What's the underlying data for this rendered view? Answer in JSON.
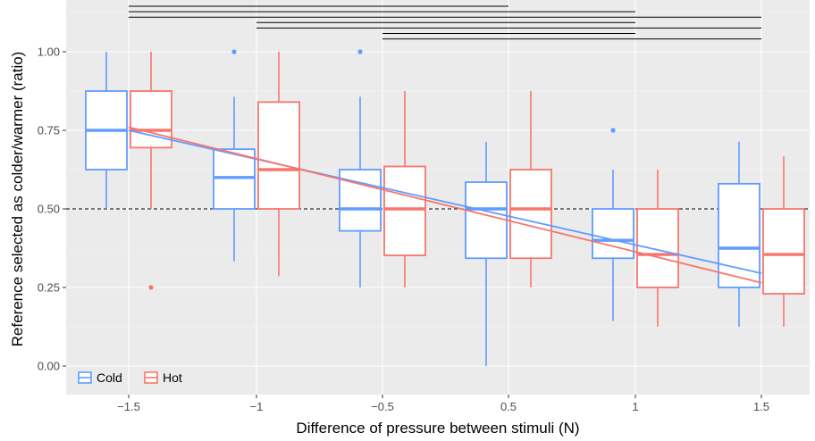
{
  "chart_data": {
    "type": "box",
    "xlabel": "Difference of pressure between stimuli (N)",
    "ylabel": "Reference selected as colder/warmer (ratio)",
    "categories": [
      "−1.5",
      "−1",
      "−0.5",
      "0.5",
      "1",
      "1.5"
    ],
    "x": [
      -1.5,
      -1,
      -0.5,
      0.5,
      1,
      1.5
    ],
    "ylim": [
      -0.05,
      1.14
    ],
    "yticks": [
      0.0,
      0.25,
      0.5,
      0.75,
      1.0
    ],
    "ytick_labels": [
      "0.00",
      "0.25",
      "0.50",
      "0.75",
      "1.00"
    ],
    "reference_line": 0.5,
    "legend": {
      "position": "bottom-left"
    },
    "series": [
      {
        "name": "Cold",
        "color": "#619CFF",
        "boxes": [
          {
            "x": -1.5,
            "min": 0.5,
            "q1": 0.625,
            "median": 0.75,
            "q3": 0.875,
            "max": 1.0,
            "outliers": []
          },
          {
            "x": -1,
            "min": 0.333,
            "q1": 0.5,
            "median": 0.6,
            "q3": 0.69,
            "max": 0.857,
            "outliers": [
              1.0
            ]
          },
          {
            "x": -0.5,
            "min": 0.25,
            "q1": 0.43,
            "median": 0.5,
            "q3": 0.625,
            "max": 0.857,
            "outliers": [
              1.0
            ]
          },
          {
            "x": 0.5,
            "min": 0.0,
            "q1": 0.343,
            "median": 0.5,
            "q3": 0.585,
            "max": 0.714,
            "outliers": []
          },
          {
            "x": 1,
            "min": 0.143,
            "q1": 0.343,
            "median": 0.4,
            "q3": 0.5,
            "max": 0.625,
            "outliers": [
              0.75
            ]
          },
          {
            "x": 1.5,
            "min": 0.125,
            "q1": 0.25,
            "median": 0.375,
            "q3": 0.58,
            "max": 0.714,
            "outliers": []
          }
        ],
        "trend": {
          "from": [
            -1.5,
            0.75
          ],
          "to": [
            1.5,
            0.295
          ]
        }
      },
      {
        "name": "Hot",
        "color": "#F8766D",
        "boxes": [
          {
            "x": -1.5,
            "min": 0.5,
            "q1": 0.695,
            "median": 0.75,
            "q3": 0.875,
            "max": 1.0,
            "outliers": [
              0.25
            ]
          },
          {
            "x": -1,
            "min": 0.286,
            "q1": 0.5,
            "median": 0.625,
            "q3": 0.84,
            "max": 1.0,
            "outliers": []
          },
          {
            "x": -0.5,
            "min": 0.25,
            "q1": 0.352,
            "median": 0.5,
            "q3": 0.635,
            "max": 0.875,
            "outliers": []
          },
          {
            "x": 0.5,
            "min": 0.25,
            "q1": 0.343,
            "median": 0.5,
            "q3": 0.625,
            "max": 0.875,
            "outliers": []
          },
          {
            "x": 1,
            "min": 0.125,
            "q1": 0.25,
            "median": 0.355,
            "q3": 0.5,
            "max": 0.625,
            "outliers": []
          },
          {
            "x": 1.5,
            "min": 0.125,
            "q1": 0.23,
            "median": 0.355,
            "q3": 0.5,
            "max": 0.667,
            "outliers": []
          }
        ],
        "trend": {
          "from": [
            -1.5,
            0.76
          ],
          "to": [
            1.5,
            0.265
          ]
        }
      }
    ],
    "significance_brackets": [
      {
        "from": -1.5,
        "to": 0.5
      },
      {
        "from": -1.5,
        "to": 1
      },
      {
        "from": -1.5,
        "to": 1.5
      },
      {
        "from": -1,
        "to": 1
      },
      {
        "from": -1,
        "to": 1.5
      },
      {
        "from": -0.5,
        "to": 1
      },
      {
        "from": -0.5,
        "to": 1.5
      }
    ]
  }
}
